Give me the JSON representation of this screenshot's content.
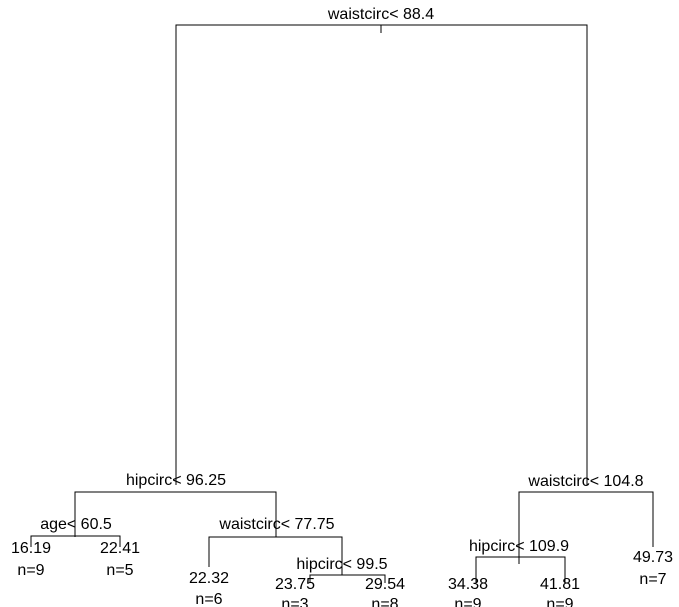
{
  "tree": {
    "root": {
      "label": "waistcirc< 88.4",
      "left": {
        "label": "hipcirc< 96.25",
        "left": {
          "label": "age< 60.5",
          "left": {
            "value": "16.19",
            "n": "n=9"
          },
          "right": {
            "value": "22.41",
            "n": "n=5"
          }
        },
        "right": {
          "label": "waistcirc< 77.75",
          "left": {
            "value": "22.32",
            "n": "n=6"
          },
          "right": {
            "label": "hipcirc< 99.5",
            "left": {
              "value": "23.75",
              "n": "n=3"
            },
            "right": {
              "value": "29.54",
              "n": "n=8"
            }
          }
        }
      },
      "right": {
        "label": "waistcirc< 104.8",
        "left": {
          "label": "hipcirc< 109.9",
          "left": {
            "value": "34.38",
            "n": "n=9"
          },
          "right": {
            "value": "41.81",
            "n": "n=9"
          }
        },
        "right": {
          "value": "49.73",
          "n": "n=7"
        }
      }
    }
  }
}
